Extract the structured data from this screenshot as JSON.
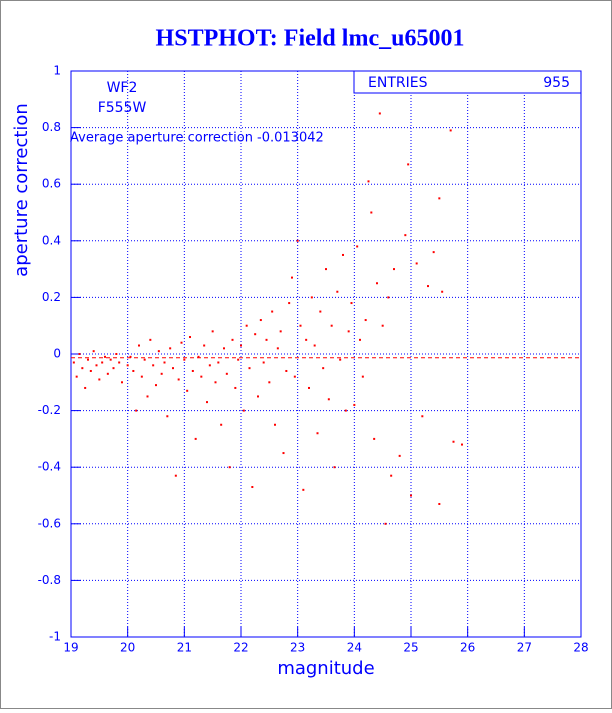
{
  "chart_data": {
    "type": "scatter",
    "title": "HSTPHOT: Field lmc_u65001",
    "x_label": "magnitude",
    "y_label": "aperture correction",
    "labels": [
      "WF2",
      "F555W"
    ],
    "stats": {
      "label": "ENTRIES",
      "value": 955
    },
    "annotation": "Average aperture correction -0.013042",
    "average_line": -0.013042,
    "xlim": [
      19,
      28
    ],
    "xticks": [
      19,
      20,
      21,
      22,
      23,
      24,
      25,
      26,
      27,
      28
    ],
    "ylim": [
      -1,
      1
    ],
    "yticks": [
      -1,
      -0.8,
      -0.6,
      -0.4,
      -0.2,
      0,
      0.2,
      0.4,
      0.6,
      0.8,
      1
    ],
    "grid": true,
    "color": "#ff0000",
    "axis_color": "#0000ff",
    "x": [
      19.05,
      19.1,
      19.15,
      19.2,
      19.25,
      19.3,
      19.35,
      19.4,
      19.45,
      19.5,
      19.55,
      19.6,
      19.65,
      19.7,
      19.75,
      19.8,
      19.85,
      19.9,
      20.0,
      20.05,
      20.1,
      20.15,
      20.2,
      20.25,
      20.3,
      20.35,
      20.4,
      20.45,
      20.5,
      20.55,
      20.6,
      20.65,
      20.7,
      20.75,
      20.8,
      20.85,
      20.9,
      20.95,
      21.0,
      21.05,
      21.1,
      21.15,
      21.2,
      21.25,
      21.3,
      21.35,
      21.4,
      21.45,
      21.5,
      21.55,
      21.6,
      21.65,
      21.7,
      21.75,
      21.8,
      21.85,
      21.9,
      21.95,
      22.0,
      22.05,
      22.1,
      22.15,
      22.2,
      22.25,
      22.3,
      22.35,
      22.4,
      22.45,
      22.5,
      22.55,
      22.6,
      22.65,
      22.7,
      22.75,
      22.8,
      22.85,
      22.9,
      22.95,
      23.0,
      23.05,
      23.1,
      23.15,
      23.2,
      23.25,
      23.3,
      23.35,
      23.4,
      23.45,
      23.5,
      23.55,
      23.6,
      23.65,
      23.7,
      23.75,
      23.8,
      23.85,
      23.9,
      23.95,
      24.0,
      24.05,
      24.1,
      24.15,
      24.2,
      24.25,
      24.3,
      24.35,
      24.4,
      24.45,
      24.5,
      24.55,
      24.6,
      24.65,
      24.7,
      24.8,
      24.9,
      24.95,
      25.0,
      25.1,
      25.2,
      25.3,
      25.4,
      25.5,
      25.5,
      25.55,
      25.7,
      25.75,
      25.9
    ],
    "values": [
      -0.03,
      -0.08,
      0.0,
      -0.05,
      -0.12,
      -0.02,
      -0.06,
      0.01,
      -0.04,
      -0.09,
      -0.03,
      -0.01,
      -0.07,
      -0.02,
      -0.05,
      0.0,
      -0.03,
      -0.1,
      -0.04,
      -0.01,
      -0.06,
      -0.2,
      0.03,
      -0.08,
      -0.02,
      -0.15,
      0.05,
      -0.04,
      -0.11,
      0.01,
      -0.07,
      -0.03,
      -0.22,
      0.02,
      -0.05,
      -0.43,
      -0.09,
      0.04,
      -0.02,
      -0.13,
      0.06,
      -0.06,
      -0.3,
      -0.01,
      -0.08,
      0.03,
      -0.17,
      -0.04,
      0.08,
      -0.1,
      -0.03,
      -0.25,
      0.02,
      -0.07,
      -0.4,
      0.05,
      -0.12,
      -0.02,
      0.03,
      -0.2,
      0.1,
      -0.05,
      -0.47,
      0.07,
      -0.15,
      0.12,
      -0.03,
      0.05,
      -0.1,
      0.15,
      -0.25,
      0.02,
      0.08,
      -0.35,
      -0.06,
      0.18,
      0.27,
      -0.08,
      0.4,
      0.1,
      -0.48,
      0.05,
      -0.12,
      0.2,
      0.03,
      -0.28,
      0.15,
      -0.05,
      0.3,
      -0.16,
      0.1,
      -0.4,
      0.22,
      -0.02,
      0.35,
      -0.2,
      0.08,
      0.18,
      -0.18,
      0.38,
      0.05,
      -0.08,
      0.12,
      0.61,
      0.5,
      -0.3,
      0.25,
      0.85,
      0.1,
      -0.6,
      0.2,
      -0.43,
      0.3,
      -0.36,
      0.42,
      0.67,
      -0.5,
      0.32,
      -0.22,
      0.24,
      0.36,
      -0.53,
      0.55,
      0.22,
      0.79,
      -0.31,
      -0.32
    ]
  }
}
